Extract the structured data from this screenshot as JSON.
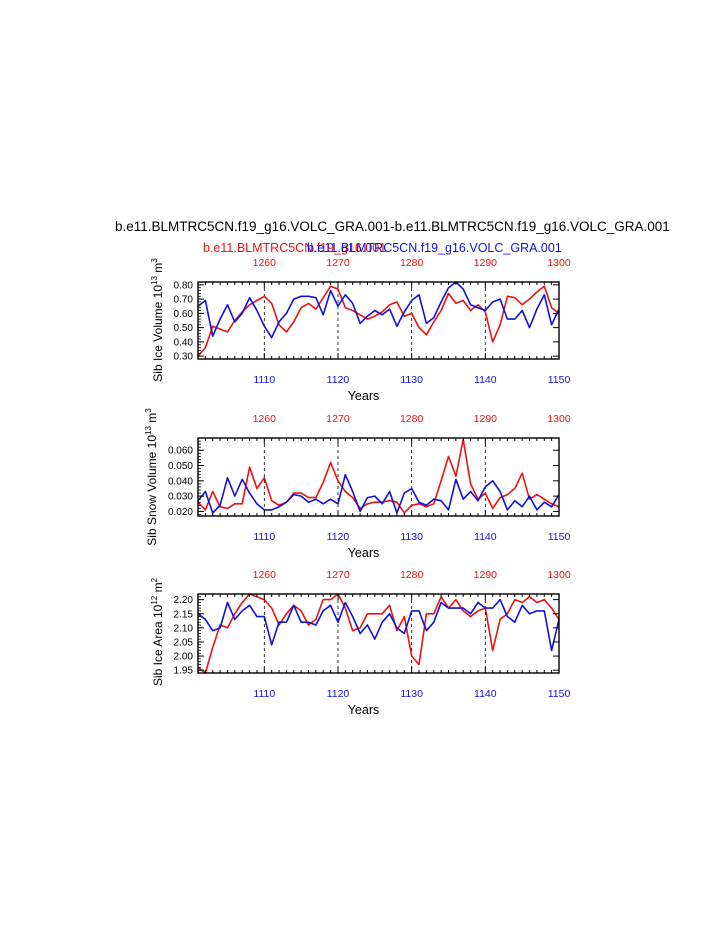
{
  "header": {
    "main_title": "b.e11.BLMTRC5CN.f19_g16.VOLC_GRA.001-b.e11.BLMTRC5CN.f19_g16.VOLC_GRA.001",
    "subtitle_red": "b.e11.BLMTRC5CN.f19_g16.001",
    "subtitle_blue": "b.e11.BLMTRC5CN.f19_g16.VOLC_GRA.001"
  },
  "colors": {
    "red": "#ee1111",
    "blue": "#1111dd",
    "axis": "#000000",
    "gridline": "#000000"
  },
  "chart_data": [
    {
      "type": "line",
      "ylabel": "Sib Ice Volume 10",
      "ylabel_exp": "13",
      "ylabel_unit": " m",
      "ylabel_unit_exp": "3",
      "xlabel": "Years",
      "xlim_bottom": [
        1101,
        1150
      ],
      "xlim_top": [
        1251,
        1300
      ],
      "xticks_bottom": [
        "1110",
        "1120",
        "1130",
        "1140",
        "1150"
      ],
      "xticks_top": [
        "1260",
        "1270",
        "1280",
        "1290",
        "1300"
      ],
      "ylim": [
        0.28,
        0.82
      ],
      "yticks": [
        "0.30",
        "0.40",
        "0.50",
        "0.60",
        "0.70",
        "0.80"
      ],
      "ytick_values": [
        0.3,
        0.4,
        0.5,
        0.6,
        0.7,
        0.8
      ],
      "series": [
        {
          "color": "red",
          "axis": "top",
          "x": [
            1251,
            1252,
            1253,
            1254,
            1255,
            1256,
            1257,
            1258,
            1259,
            1260,
            1261,
            1262,
            1263,
            1264,
            1265,
            1266,
            1267,
            1268,
            1269,
            1270,
            1271,
            1272,
            1273,
            1274,
            1275,
            1276,
            1277,
            1278,
            1279,
            1280,
            1281,
            1282,
            1283,
            1284,
            1285,
            1286,
            1287,
            1288,
            1289,
            1290,
            1291,
            1292,
            1293,
            1294,
            1295,
            1296,
            1297,
            1298,
            1299,
            1300
          ],
          "values": [
            0.3,
            0.36,
            0.51,
            0.49,
            0.47,
            0.55,
            0.61,
            0.66,
            0.69,
            0.72,
            0.67,
            0.52,
            0.47,
            0.54,
            0.64,
            0.67,
            0.63,
            0.71,
            0.79,
            0.77,
            0.64,
            0.62,
            0.59,
            0.56,
            0.58,
            0.61,
            0.66,
            0.68,
            0.58,
            0.6,
            0.5,
            0.45,
            0.54,
            0.62,
            0.74,
            0.67,
            0.69,
            0.62,
            0.66,
            0.61,
            0.4,
            0.52,
            0.72,
            0.71,
            0.66,
            0.7,
            0.75,
            0.79,
            0.64,
            0.6
          ]
        },
        {
          "color": "blue",
          "axis": "bottom",
          "x": [
            1101,
            1102,
            1103,
            1104,
            1105,
            1106,
            1107,
            1108,
            1109,
            1110,
            1111,
            1112,
            1113,
            1114,
            1115,
            1116,
            1117,
            1118,
            1119,
            1120,
            1121,
            1122,
            1123,
            1124,
            1125,
            1126,
            1127,
            1128,
            1129,
            1130,
            1131,
            1132,
            1133,
            1134,
            1135,
            1136,
            1137,
            1138,
            1139,
            1140,
            1141,
            1142,
            1143,
            1144,
            1145,
            1146,
            1147,
            1148,
            1149,
            1150
          ],
          "values": [
            0.65,
            0.69,
            0.44,
            0.56,
            0.66,
            0.54,
            0.6,
            0.71,
            0.62,
            0.51,
            0.43,
            0.54,
            0.6,
            0.7,
            0.72,
            0.72,
            0.71,
            0.59,
            0.76,
            0.65,
            0.73,
            0.67,
            0.53,
            0.58,
            0.62,
            0.59,
            0.63,
            0.51,
            0.61,
            0.69,
            0.73,
            0.53,
            0.57,
            0.68,
            0.78,
            0.82,
            0.77,
            0.66,
            0.64,
            0.62,
            0.68,
            0.7,
            0.56,
            0.56,
            0.62,
            0.5,
            0.63,
            0.73,
            0.52,
            0.63
          ]
        }
      ]
    },
    {
      "type": "line",
      "ylabel": "Sib Snow Volume 10",
      "ylabel_exp": "13",
      "ylabel_unit": " m",
      "ylabel_unit_exp": "3",
      "xlabel": "Years",
      "xlim_bottom": [
        1101,
        1150
      ],
      "xlim_top": [
        1251,
        1300
      ],
      "xticks_bottom": [
        "1110",
        "1120",
        "1130",
        "1140",
        "1150"
      ],
      "xticks_top": [
        "1260",
        "1270",
        "1280",
        "1290",
        "1300"
      ],
      "ylim": [
        0.017,
        0.068
      ],
      "yticks": [
        "0.020",
        "0.030",
        "0.040",
        "0.050",
        "0.060"
      ],
      "ytick_values": [
        0.02,
        0.03,
        0.04,
        0.05,
        0.06
      ],
      "series": [
        {
          "color": "red",
          "axis": "top",
          "x": [
            1251,
            1252,
            1253,
            1254,
            1255,
            1256,
            1257,
            1258,
            1259,
            1260,
            1261,
            1262,
            1263,
            1264,
            1265,
            1266,
            1267,
            1268,
            1269,
            1270,
            1271,
            1272,
            1273,
            1274,
            1275,
            1276,
            1277,
            1278,
            1279,
            1280,
            1281,
            1282,
            1283,
            1284,
            1285,
            1286,
            1287,
            1288,
            1289,
            1290,
            1291,
            1292,
            1293,
            1294,
            1295,
            1296,
            1297,
            1298,
            1299,
            1300
          ],
          "values": [
            0.026,
            0.021,
            0.033,
            0.023,
            0.022,
            0.025,
            0.025,
            0.049,
            0.035,
            0.042,
            0.027,
            0.024,
            0.026,
            0.032,
            0.032,
            0.029,
            0.029,
            0.039,
            0.052,
            0.04,
            0.033,
            0.029,
            0.022,
            0.025,
            0.026,
            0.026,
            0.027,
            0.026,
            0.019,
            0.024,
            0.025,
            0.023,
            0.025,
            0.04,
            0.056,
            0.043,
            0.067,
            0.038,
            0.028,
            0.032,
            0.022,
            0.029,
            0.031,
            0.035,
            0.045,
            0.028,
            0.031,
            0.028,
            0.025,
            0.023
          ]
        },
        {
          "color": "blue",
          "axis": "bottom",
          "x": [
            1101,
            1102,
            1103,
            1104,
            1105,
            1106,
            1107,
            1108,
            1109,
            1110,
            1111,
            1112,
            1113,
            1114,
            1115,
            1116,
            1117,
            1118,
            1119,
            1120,
            1121,
            1122,
            1123,
            1124,
            1125,
            1126,
            1127,
            1128,
            1129,
            1130,
            1131,
            1132,
            1133,
            1134,
            1135,
            1136,
            1137,
            1138,
            1139,
            1140,
            1141,
            1142,
            1143,
            1144,
            1145,
            1146,
            1147,
            1148,
            1149,
            1150
          ],
          "values": [
            0.027,
            0.033,
            0.019,
            0.024,
            0.042,
            0.03,
            0.041,
            0.032,
            0.025,
            0.021,
            0.021,
            0.023,
            0.026,
            0.031,
            0.03,
            0.026,
            0.028,
            0.025,
            0.028,
            0.025,
            0.044,
            0.033,
            0.02,
            0.029,
            0.03,
            0.025,
            0.033,
            0.019,
            0.032,
            0.035,
            0.026,
            0.024,
            0.028,
            0.027,
            0.021,
            0.041,
            0.028,
            0.033,
            0.027,
            0.036,
            0.04,
            0.033,
            0.021,
            0.027,
            0.023,
            0.03,
            0.021,
            0.026,
            0.023,
            0.031
          ]
        }
      ]
    },
    {
      "type": "line",
      "ylabel": "Sib Ice Area 10",
      "ylabel_exp": "12",
      "ylabel_unit": " m",
      "ylabel_unit_exp": "2",
      "xlabel": "Years",
      "xlim_bottom": [
        1101,
        1150
      ],
      "xlim_top": [
        1251,
        1300
      ],
      "xticks_bottom": [
        "1110",
        "1120",
        "1130",
        "1140",
        "1150"
      ],
      "xticks_top": [
        "1260",
        "1270",
        "1280",
        "1290",
        "1300"
      ],
      "ylim": [
        1.94,
        2.22
      ],
      "yticks": [
        "1.95",
        "2.00",
        "2.05",
        "2.10",
        "2.15",
        "2.20"
      ],
      "ytick_values": [
        1.95,
        2.0,
        2.05,
        2.1,
        2.15,
        2.2
      ],
      "series": [
        {
          "color": "red",
          "axis": "top",
          "x": [
            1251,
            1252,
            1253,
            1254,
            1255,
            1256,
            1257,
            1258,
            1259,
            1260,
            1261,
            1262,
            1263,
            1264,
            1265,
            1266,
            1267,
            1268,
            1269,
            1270,
            1271,
            1272,
            1273,
            1274,
            1275,
            1276,
            1277,
            1278,
            1279,
            1280,
            1281,
            1282,
            1283,
            1284,
            1285,
            1286,
            1287,
            1288,
            1289,
            1290,
            1291,
            1292,
            1293,
            1294,
            1295,
            1296,
            1297,
            1298,
            1299,
            1300
          ],
          "values": [
            1.96,
            1.94,
            2.03,
            2.11,
            2.1,
            2.15,
            2.19,
            2.22,
            2.21,
            2.2,
            2.17,
            2.11,
            2.15,
            2.18,
            2.16,
            2.11,
            2.13,
            2.2,
            2.2,
            2.22,
            2.17,
            2.09,
            2.1,
            2.15,
            2.15,
            2.15,
            2.18,
            2.09,
            2.14,
            2.0,
            1.97,
            2.15,
            2.15,
            2.21,
            2.17,
            2.2,
            2.16,
            2.14,
            2.16,
            2.17,
            2.02,
            2.13,
            2.15,
            2.2,
            2.19,
            2.21,
            2.19,
            2.2,
            2.17,
            2.13
          ]
        },
        {
          "color": "blue",
          "axis": "bottom",
          "x": [
            1101,
            1102,
            1103,
            1104,
            1105,
            1106,
            1107,
            1108,
            1109,
            1110,
            1111,
            1112,
            1113,
            1114,
            1115,
            1116,
            1117,
            1118,
            1119,
            1120,
            1121,
            1122,
            1123,
            1124,
            1125,
            1126,
            1127,
            1128,
            1129,
            1130,
            1131,
            1132,
            1133,
            1134,
            1135,
            1136,
            1137,
            1138,
            1139,
            1140,
            1141,
            1142,
            1143,
            1144,
            1145,
            1146,
            1147,
            1148,
            1149,
            1150
          ],
          "values": [
            2.15,
            2.13,
            2.09,
            2.1,
            2.19,
            2.13,
            2.16,
            2.18,
            2.14,
            2.14,
            2.04,
            2.12,
            2.12,
            2.18,
            2.12,
            2.12,
            2.11,
            2.16,
            2.18,
            2.12,
            2.19,
            2.14,
            2.08,
            2.11,
            2.06,
            2.12,
            2.15,
            2.1,
            2.08,
            2.16,
            2.16,
            2.09,
            2.12,
            2.19,
            2.17,
            2.17,
            2.17,
            2.15,
            2.19,
            2.17,
            2.17,
            2.2,
            2.14,
            2.12,
            2.18,
            2.15,
            2.16,
            2.16,
            2.02,
            2.13
          ]
        }
      ]
    }
  ]
}
